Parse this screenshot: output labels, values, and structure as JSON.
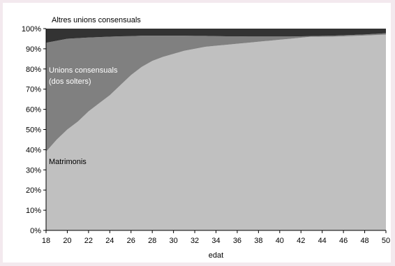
{
  "chart_data": {
    "type": "area",
    "stacked": true,
    "normalized_percent": true,
    "xlabel": "edat",
    "ylabel": "",
    "xlim": [
      18,
      50
    ],
    "ylim": [
      0,
      100
    ],
    "x_ticks": [
      18,
      20,
      22,
      24,
      26,
      28,
      30,
      32,
      34,
      36,
      38,
      40,
      42,
      44,
      46,
      48,
      50
    ],
    "y_ticks": [
      "0%",
      "10%",
      "20%",
      "30%",
      "40%",
      "50%",
      "60%",
      "70%",
      "80%",
      "90%",
      "100%"
    ],
    "x": [
      18,
      19,
      20,
      21,
      22,
      23,
      24,
      25,
      26,
      27,
      28,
      29,
      30,
      31,
      32,
      33,
      34,
      35,
      36,
      37,
      38,
      39,
      40,
      41,
      42,
      43,
      44,
      45,
      46,
      47,
      48,
      49,
      50
    ],
    "series": [
      {
        "name": "Matrimonis",
        "color": "#c0c0c0",
        "values": [
          39,
          45,
          50,
          54,
          59,
          63,
          67,
          72,
          77,
          81,
          84,
          86,
          87.5,
          89,
          90,
          91,
          91.5,
          92,
          92.5,
          93,
          93.5,
          94,
          94.5,
          95,
          95.5,
          96,
          96,
          96,
          96.2,
          96.4,
          96.6,
          96.8,
          97
        ]
      },
      {
        "name": "Unions consensuals (dos solters)",
        "color": "#808080",
        "values": [
          54,
          49,
          45,
          41.3,
          36.6,
          32.8,
          29,
          24.2,
          19.3,
          15.5,
          12.5,
          10.5,
          9,
          7.5,
          6.4,
          5.4,
          4.8,
          4.2,
          3.7,
          3.1,
          2.6,
          2.1,
          1.6,
          1.1,
          0.7,
          0.3,
          0.4,
          0.5,
          0.5,
          0.5,
          0.5,
          0.6,
          0.7
        ]
      },
      {
        "name": "Altres unions consensuals",
        "color": "#333333",
        "values": [
          7,
          6,
          5,
          4.7,
          4.4,
          4.2,
          4,
          3.8,
          3.7,
          3.5,
          3.5,
          3.5,
          3.5,
          3.5,
          3.6,
          3.6,
          3.7,
          3.8,
          3.8,
          3.9,
          3.9,
          3.9,
          3.9,
          3.9,
          3.8,
          3.7,
          3.6,
          3.5,
          3.3,
          3.1,
          2.9,
          2.6,
          2.3
        ]
      }
    ],
    "annotations": [
      {
        "text": "Altres unions consensuals",
        "series": "Altres unions consensuals",
        "color": "#000000"
      },
      {
        "text_lines": [
          "Unions consensuals",
          "(dos solters)"
        ],
        "series": "Unions consensuals (dos solters)",
        "color": "#ffffff"
      },
      {
        "text": "Matrimonis",
        "series": "Matrimonis",
        "color": "#000000"
      }
    ],
    "grid": false,
    "legend": "none"
  },
  "labels": {
    "altres": "Altres unions consensuals",
    "unions_line1": "Unions consensuals",
    "unions_line2": "(dos solters)",
    "matrimonis": "Matrimonis",
    "xlabel": "edat"
  }
}
